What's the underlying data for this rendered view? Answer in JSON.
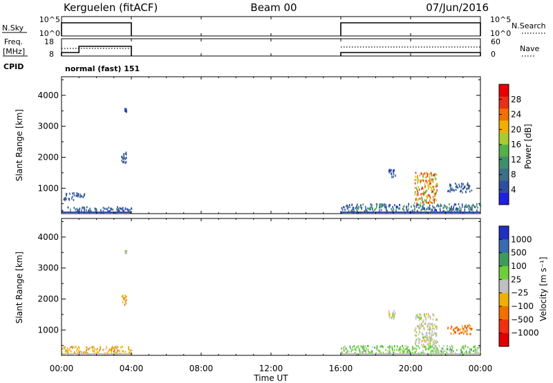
{
  "header": {
    "station": "Kerguelen (fitACF)",
    "beam": "Beam 00",
    "date": "07/Jun/2016"
  },
  "sky_panel": {
    "left_label": "N.Sky",
    "left_ticks": [
      "10^5",
      "10^0"
    ],
    "right_label": "N.Search",
    "right_ticks": [
      "10^5",
      "10^0"
    ]
  },
  "freq_panel": {
    "left_label_line1": "Freq.",
    "left_label_line2": "[MHz]",
    "left_ticks": [
      "18",
      "8"
    ],
    "right_label": "Nave",
    "right_ticks": [
      "60",
      "0"
    ]
  },
  "cpid_panel": {
    "label": "CPID",
    "mode_text": "normal (fast) 151"
  },
  "time_axis": {
    "ticks": [
      "00:00",
      "04:00",
      "08:00",
      "12:00",
      "16:00",
      "20:00",
      "00:00"
    ],
    "tick_hours": [
      0,
      4,
      8,
      12,
      16,
      20,
      24
    ],
    "title": "Time UT"
  },
  "operation_intervals_hours": [
    [
      0,
      4
    ],
    [
      16,
      24
    ]
  ],
  "chart_data": [
    {
      "type": "heatmap",
      "quantity": "Power",
      "ylabel": "Slant Range [km]",
      "ylim": [
        180,
        4600
      ],
      "yticks": [
        "1000",
        "2000",
        "3000",
        "4000"
      ],
      "ytick_values": [
        1000,
        2000,
        3000,
        4000
      ],
      "xlim_hours": [
        0,
        24
      ],
      "colorbar": {
        "title": "Power [dB]",
        "range": [
          0,
          32
        ],
        "ticks": [
          "4",
          "8",
          "12",
          "16",
          "20",
          "24",
          "28"
        ],
        "tick_values": [
          4,
          8,
          12,
          16,
          20,
          24,
          28
        ],
        "colors": [
          "#2020e0",
          "#2e4fa0",
          "#3d6e8a",
          "#3f8f6c",
          "#55b048",
          "#aacc30",
          "#f0b000",
          "#f07000",
          "#e83018",
          "#e80000"
        ]
      },
      "regions": [
        {
          "t0": 0.0,
          "t1": 4.0,
          "r0": 200,
          "r1": 380,
          "value_range": [
            2,
            10
          ]
        },
        {
          "t0": 0.1,
          "t1": 1.3,
          "r0": 600,
          "r1": 850,
          "value_range": [
            3,
            8
          ]
        },
        {
          "t0": 3.4,
          "t1": 3.7,
          "r0": 1800,
          "r1": 2150,
          "value_range": [
            3,
            8
          ]
        },
        {
          "t0": 3.6,
          "t1": 3.7,
          "r0": 3450,
          "r1": 3550,
          "value_range": [
            3,
            6
          ]
        },
        {
          "t0": 16.0,
          "t1": 24.0,
          "r0": 200,
          "r1": 480,
          "value_range": [
            2,
            14
          ]
        },
        {
          "t0": 18.7,
          "t1": 19.1,
          "r0": 1350,
          "r1": 1600,
          "value_range": [
            3,
            7
          ]
        },
        {
          "t0": 20.2,
          "t1": 21.5,
          "r0": 500,
          "r1": 1500,
          "value_range": [
            14,
            30
          ]
        },
        {
          "t0": 22.1,
          "t1": 23.5,
          "r0": 850,
          "r1": 1150,
          "value_range": [
            3,
            9
          ]
        }
      ]
    },
    {
      "type": "heatmap",
      "quantity": "Velocity",
      "ylabel": "Slant Range [km]",
      "ylim": [
        180,
        4600
      ],
      "yticks": [
        "1000",
        "2000",
        "3000",
        "4000"
      ],
      "ytick_values": [
        1000,
        2000,
        3000,
        4000
      ],
      "xlim_hours": [
        0,
        24
      ],
      "colorbar": {
        "title": "Velocity [m s⁻¹]",
        "ticks": [
          "1000",
          "500",
          "100",
          "25",
          "−25",
          "−100",
          "−500",
          "−1000"
        ],
        "colors": [
          "#2030c0",
          "#3a6ab0",
          "#3f9a5a",
          "#6ecf3a",
          "#c0c0c0",
          "#f0b000",
          "#f07000",
          "#f03010",
          "#e00000"
        ]
      },
      "regions": [
        {
          "t0": 0.0,
          "t1": 4.0,
          "r0": 200,
          "r1": 450,
          "color_index": 5
        },
        {
          "t0": 3.4,
          "t1": 3.7,
          "r0": 1800,
          "r1": 2100,
          "color_index": 5
        },
        {
          "t0": 3.6,
          "t1": 3.7,
          "r0": 3450,
          "r1": 3550,
          "color_index": 4
        },
        {
          "t0": 16.0,
          "t1": 24.0,
          "r0": 200,
          "r1": 480,
          "color_index": 3
        },
        {
          "t0": 18.7,
          "t1": 19.1,
          "r0": 1350,
          "r1": 1600,
          "color_index": 4
        },
        {
          "t0": 20.2,
          "t1": 21.5,
          "r0": 500,
          "r1": 1500,
          "color_index": 4
        },
        {
          "t0": 22.1,
          "t1": 23.5,
          "r0": 850,
          "r1": 1150,
          "color_index": 6
        }
      ]
    }
  ]
}
